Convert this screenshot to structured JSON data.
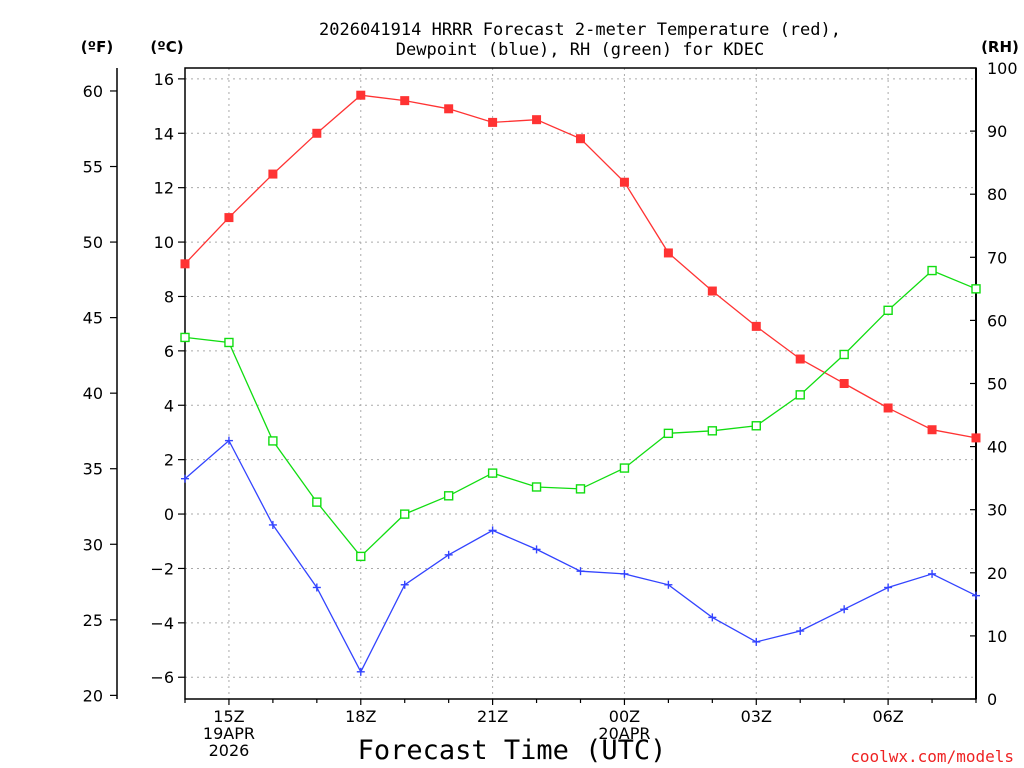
{
  "chart_data": {
    "type": "line",
    "title_line1": "2026041914 HRRR Forecast 2-meter Temperature (red),",
    "title_line2": "Dewpoint (blue), RH (green) for KDEC",
    "xlabel": "Forecast Time (UTC)",
    "credit": "coolwx.com/models",
    "left_outer_axis_label": "(ºF)",
    "left_axis_label": "(ºC)",
    "right_axis_label": "(RH)",
    "x_range_hours": [
      0,
      18
    ],
    "c_range": [
      -6.8,
      16.4
    ],
    "f_range": [
      19.76,
      61.52
    ],
    "rh_range": [
      0,
      100
    ],
    "c_ticks": [
      -6,
      -4,
      -2,
      0,
      2,
      4,
      6,
      8,
      10,
      12,
      14,
      16
    ],
    "c_tick_labels": [
      "−6",
      "−4",
      "−2",
      "0",
      "2",
      "4",
      "6",
      "8",
      "10",
      "12",
      "14",
      "16"
    ],
    "f_ticks": [
      20,
      25,
      30,
      35,
      40,
      45,
      50,
      55,
      60
    ],
    "f_tick_labels": [
      "20",
      "25",
      "30",
      "35",
      "40",
      "45",
      "50",
      "55",
      "60"
    ],
    "rh_ticks": [
      0,
      10,
      20,
      30,
      40,
      50,
      60,
      70,
      80,
      90,
      100
    ],
    "rh_tick_labels": [
      "0",
      "10",
      "20",
      "30",
      "40",
      "50",
      "60",
      "70",
      "80",
      "90",
      "100"
    ],
    "x_major_ticks": [
      1,
      4,
      7,
      10,
      13,
      16
    ],
    "x_tick_labels": [
      {
        "hour": 1,
        "lines": [
          "15Z",
          "19APR",
          "2026"
        ]
      },
      {
        "hour": 4,
        "lines": [
          "18Z"
        ]
      },
      {
        "hour": 7,
        "lines": [
          "21Z"
        ]
      },
      {
        "hour": 10,
        "lines": [
          "00Z",
          "20APR"
        ]
      },
      {
        "hour": 13,
        "lines": [
          "03Z"
        ]
      },
      {
        "hour": 16,
        "lines": [
          "06Z"
        ]
      }
    ],
    "x_hours": [
      0,
      1,
      2,
      3,
      4,
      5,
      6,
      7,
      8,
      9,
      10,
      11,
      12,
      13,
      14,
      15,
      16,
      17,
      18
    ],
    "series": [
      {
        "name": "Temperature (red)",
        "color": "#ff3333",
        "marker": "filled-square",
        "axis": "C",
        "values": [
          9.2,
          10.9,
          12.5,
          14.0,
          15.4,
          15.2,
          14.9,
          14.4,
          14.5,
          13.8,
          12.2,
          9.6,
          8.2,
          6.9,
          5.7,
          4.8,
          3.9,
          3.1,
          2.8
        ]
      },
      {
        "name": "Dewpoint (blue)",
        "color": "#3344ff",
        "marker": "plus",
        "axis": "C",
        "values": [
          1.3,
          2.7,
          -0.4,
          -2.7,
          -5.8,
          -2.6,
          -1.5,
          -0.6,
          -1.3,
          -2.1,
          -2.2,
          -2.6,
          -3.8,
          -4.7,
          -4.3,
          -3.5,
          -2.7,
          -2.2,
          -3.0
        ]
      },
      {
        "name": "RH (green)",
        "color": "#11dd11",
        "marker": "open-square",
        "axis": "RH",
        "values": [
          57.3,
          56.5,
          40.9,
          31.2,
          22.6,
          29.3,
          32.2,
          35.8,
          33.6,
          33.3,
          36.6,
          42.1,
          42.5,
          43.3,
          48.2,
          54.6,
          61.6,
          67.9,
          65.0
        ]
      }
    ]
  }
}
